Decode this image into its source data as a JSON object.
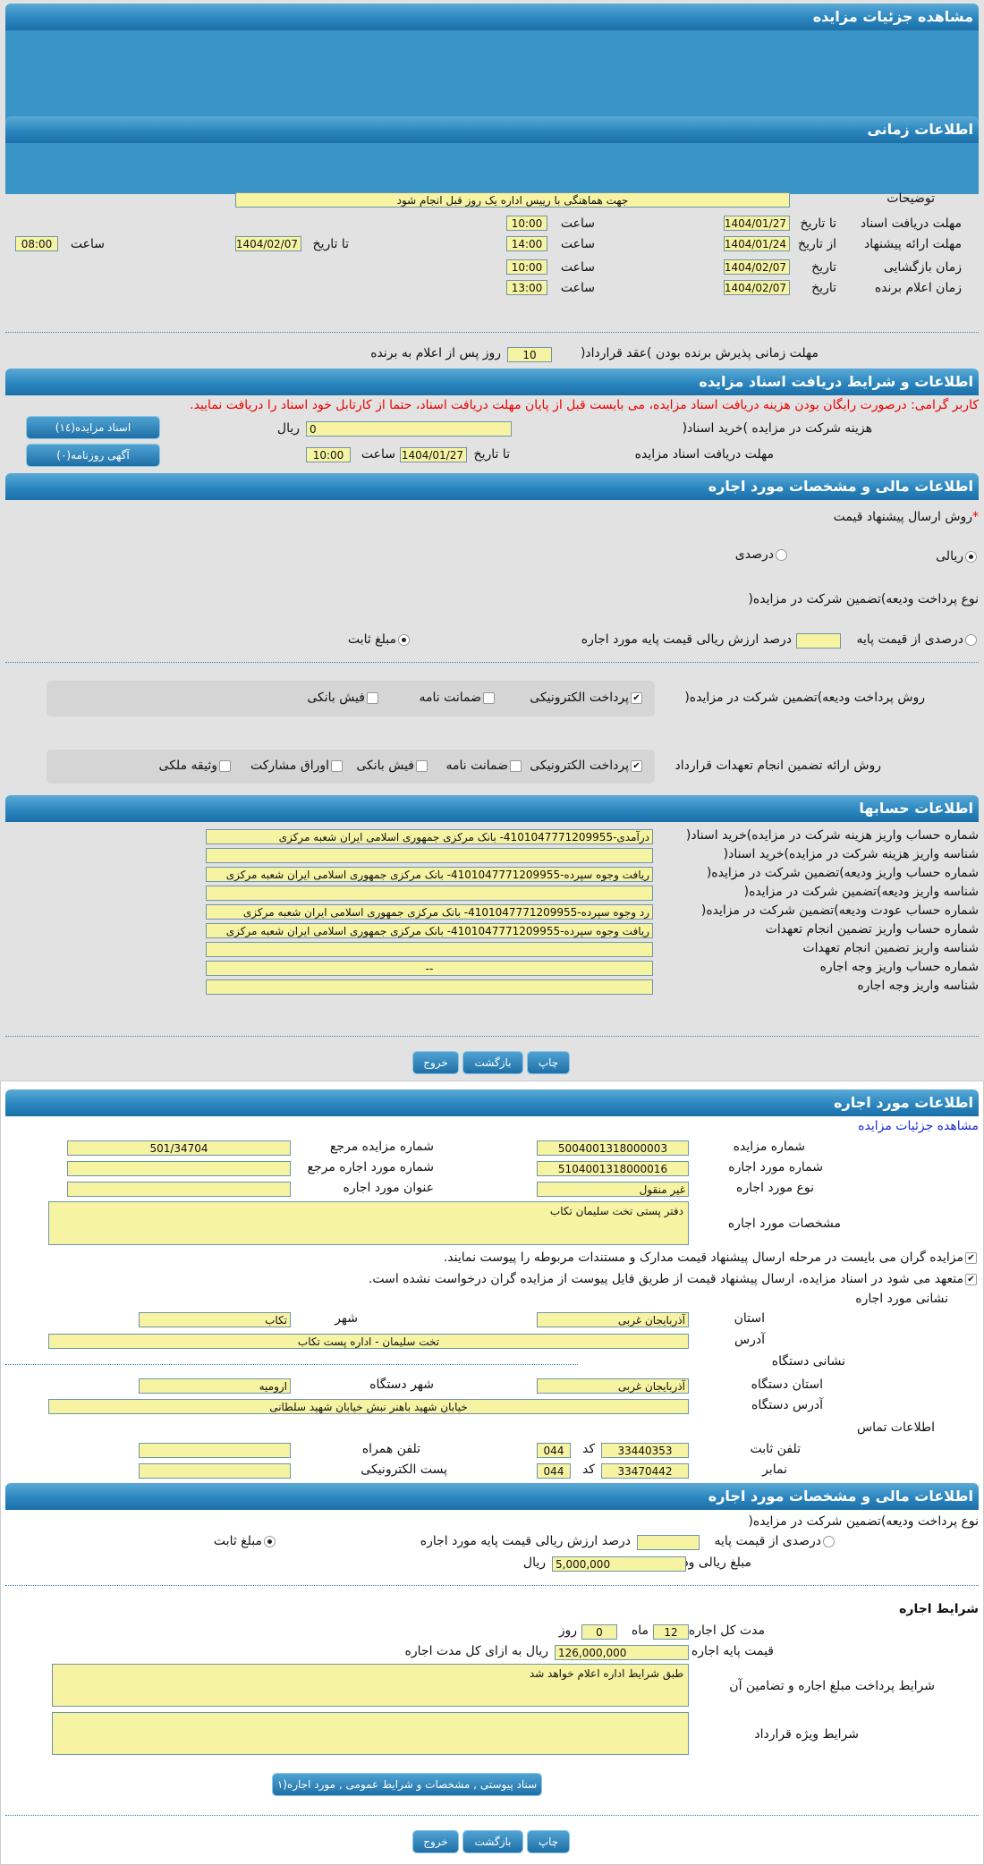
{
  "page": {
    "title": "مشاهده جزئیات مزایده"
  },
  "time": {
    "header": "اطلاعات زمانی",
    "desc_label": "توضیحات",
    "desc": "جهت هماهنگی با رییس اداره  یک روز قبل انجام شود",
    "rows": [
      {
        "label": "مهلت دریافت اسناد",
        "date_label": "تا تاریخ",
        "date": "1404/01/27",
        "time_label": "ساعت",
        "time": "10:00"
      },
      {
        "label": "مهلت ارائه پیشنهاد",
        "date_label": "از تاریخ",
        "date": "1404/01/24",
        "time_label": "ساعت",
        "time": "14:00",
        "to_label": "تا تاریخ",
        "to_date": "1404/02/07",
        "to_time_label": "ساعت",
        "to_time": "08:00"
      },
      {
        "label": "زمان بازگشایی",
        "date_label": "تاریخ",
        "date": "1404/02/07",
        "time_label": "ساعت",
        "time": "10:00"
      },
      {
        "label": "زمان اعلام برنده",
        "date_label": "تاریخ",
        "date": "1404/02/07",
        "time_label": "ساعت",
        "time": "13:00"
      }
    ],
    "acceptance_label": "مهلت زمانی پذیرش برنده بودن )عقد قرارداد(",
    "acceptance_days": "10",
    "acceptance_suffix": "روز پس از اعلام به برنده"
  },
  "docs": {
    "header": "اطلاعات و شرایط دریافت اسناد مزایده",
    "notice": "کاربر گرامی: درصورت رایگان بودن هزینه دریافت اسناد مزایده، می بایست قبل از پایان مهلت دریافت اسناد، حتما از کارتابل خود اسناد را دریافت نمایید.",
    "fee_label": "هزینه شرکت در مزایده )خرید اسناد(",
    "fee": "0",
    "currency": "ریال",
    "deadline_label": "مهلت دریافت اسناد مزایده",
    "to_label": "تا تاریخ",
    "date": "1404/01/27",
    "time_label": "ساعت",
    "time": "10:00",
    "btn_docs": "اسناد مزایده(۱٤)",
    "btn_ads": "آگهی روزنامه(۰)"
  },
  "finance": {
    "header": "اطلاعات مالی و مشخصات مورد اجاره",
    "method_label": "روش ارسال پیشنهاد قیمت",
    "required_mark": "*",
    "opt_rial": "ریالی",
    "opt_percent": "درصدی",
    "selected": "ریالی",
    "deposit_type_label": "نوع پرداخت ودیعه)تضمین شرکت در مزایده(",
    "deposit_percent_label": "درصدی از قیمت پایه",
    "deposit_percent_suffix": "درصد ارزش ریالی قیمت پایه مورد اجاره",
    "deposit_fixed": "مبلغ ثابت",
    "deposit_method_label": "روش پرداخت ودیعه)تضمین شرکت در مزایده(",
    "deposit_methods": [
      {
        "label": "پرداخت الکترونیکی",
        "checked": true
      },
      {
        "label": "ضمانت نامه",
        "checked": false
      },
      {
        "label": "فیش بانکی",
        "checked": false
      }
    ],
    "guarantee_label": "روش ارائه تضمین انجام تعهدات قرارداد",
    "guarantee_methods": [
      {
        "label": "پرداخت الکترونیکی",
        "checked": true
      },
      {
        "label": "ضمانت نامه",
        "checked": false
      },
      {
        "label": "فیش بانکی",
        "checked": false
      },
      {
        "label": "اوراق مشارکت",
        "checked": false
      },
      {
        "label": "وثیقه ملکی",
        "checked": false
      }
    ]
  },
  "accounts": {
    "header": "اطلاعات حسابها",
    "rows": [
      {
        "label": "شماره حساب واریز هزینه شرکت در مزایده)خرید اسناد(",
        "value": "درآمدی-4101047771209955- بانک مرکزی جمهوری اسلامی ایران شعبه مرکزی"
      },
      {
        "label": "شناسه واریز هزینه شرکت در مزایده)خرید اسناد(",
        "value": ""
      },
      {
        "label": "شماره حساب واریز ودیعه)تضمین شرکت در مزایده(",
        "value": "ریافت وجوه سپرده-4101047771209955- بانک مرکزی جمهوری اسلامی ایران شعبه مرکزی"
      },
      {
        "label": "شناسه واریز ودیعه)تضمین شرکت در مزایده(",
        "value": ""
      },
      {
        "label": "شماره حساب عودت ودیعه)تضمین شرکت در مزایده(",
        "value": "رد وجوه سپرده-4101047771209955- بانک مرکزی جمهوری اسلامی ایران شعبه مرکزی"
      },
      {
        "label": "شماره حساب واریز تضمین انجام تعهدات",
        "value": "ریافت وجوه سپرده-4101047771209955- بانک مرکزی جمهوری اسلامی ایران شعبه مرکزی"
      },
      {
        "label": "شناسه واریز تضمین انجام تعهدات",
        "value": ""
      },
      {
        "label": "شماره حساب واریز وجه اجاره",
        "value": "--"
      },
      {
        "label": "شناسه واریز وجه اجاره",
        "value": ""
      }
    ]
  },
  "buttons": {
    "print": "چاپ",
    "back": "بازگشت",
    "exit": "خروج"
  },
  "item": {
    "header": "اطلاعات مورد اجاره",
    "link": "مشاهده جزئیات مزایده",
    "auction_no_label": "شماره مزایده",
    "auction_no": "5004001318000003",
    "ref_auction_label": "شماره مزایده مرجع",
    "ref_auction": "501/34704",
    "item_no_label": "شماره مورد اجاره",
    "item_no": "5104001318000016",
    "ref_item_label": "شماره مورد اجاره مرجع",
    "ref_item": "",
    "type_label": "نوع مورد اجاره",
    "type": "غیر منقول",
    "title_label": "عنوان مورد اجاره",
    "title": "",
    "spec_label": "مشخصات مورد اجاره",
    "spec": "دفتر پستی تخت سلیمان تکاب",
    "check1": "مزایده گران می بایست در مرحله ارسال پیشنهاد قیمت مدارک و مستندات مربوطه را پیوست نمایند.",
    "check2": "متعهد می شود در اسناد مزایده، ارسال پیشنهاد قیمت از طریق فایل پیوست از مزایده گران درخواست نشده است.",
    "addr_title": "نشانی مورد اجاره",
    "province_label": "استان",
    "province": "آذربایجان غربی",
    "city_label": "شهر",
    "city": "تکاب",
    "address_label": "آدرس",
    "address": "تخت سلیمان - اداره پست تکاب",
    "org_title": "نشانی دستگاه",
    "org_province_label": "استان دستگاه",
    "org_province": "آذربایجان غربی",
    "org_city_label": "شهر دستگاه",
    "org_city": "ارومیه",
    "org_address_label": "آدرس دستگاه",
    "org_address": "خیابان شهید باهنر نبش خیابان شهید سلطانی",
    "contact_title": "اطلاعات تماس",
    "phone_label": "تلفن ثابت",
    "phone": "33440353",
    "code_label": "کد",
    "phone_code": "044",
    "mobile_label": "تلفن همراه",
    "mobile": "",
    "fax_label": "نمابر",
    "fax": "33470442",
    "fax_code": "044",
    "email_label": "پست الکترونیکی",
    "email": ""
  },
  "finance2": {
    "header": "اطلاعات مالی و مشخصات مورد اجاره",
    "deposit_type_label": "نوع پرداخت ودیعه)تضمین شرکت در مزایده(",
    "percent_label": "درصدی از قیمت پایه",
    "percent_suffix": "درصد ارزش ریالی قیمت پایه مورد اجاره",
    "fixed_label": "مبلغ ثابت",
    "deposit_amount_label": "مبلغ ریالی ودیعه",
    "deposit_amount": "5,000,000",
    "currency": "ریال",
    "terms_title": "شرایط اجاره",
    "duration_label": "مدت کل اجاره",
    "months": "12",
    "month_label": "ماه",
    "days": "0",
    "day_label": "روز",
    "base_price_label": "قیمت پایه اجاره",
    "base_price": "126,000,000",
    "base_price_suffix": "ریال به ازای کل مدت اجاره",
    "payment_terms_label": "شرایط پرداخت مبلغ اجاره و تضامین آن",
    "payment_terms": "طبق شرایط اداره اعلام خواهد شد",
    "special_terms_label": "شرایط ویژه قرارداد",
    "special_terms": "",
    "attach_btn": "سناد پیوستی , مشخصات و شرایط عمومی , مورد اجاره(۱"
  }
}
